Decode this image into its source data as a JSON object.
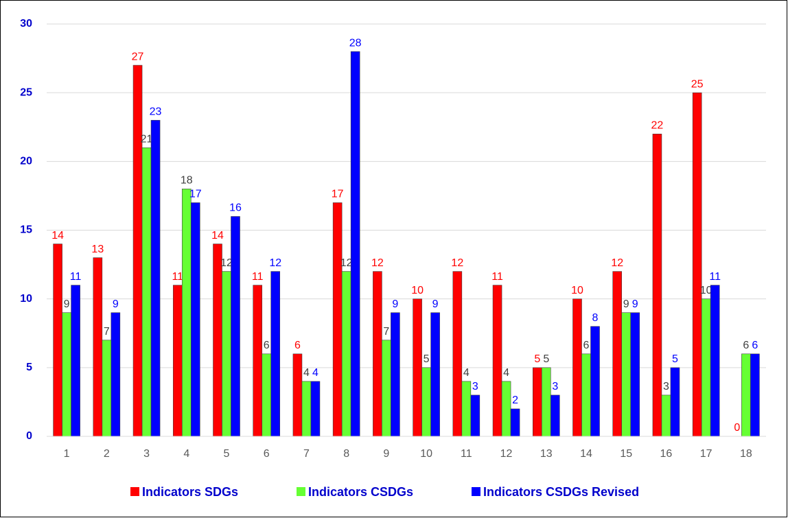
{
  "chart_data": {
    "type": "bar",
    "categories": [
      "1",
      "2",
      "3",
      "4",
      "5",
      "6",
      "7",
      "8",
      "9",
      "10",
      "11",
      "12",
      "13",
      "14",
      "15",
      "16",
      "17",
      "18"
    ],
    "series": [
      {
        "name": "Indicators SDGs",
        "color": "#ff0000",
        "label_color": "#ff0000",
        "values": [
          14,
          13,
          27,
          11,
          14,
          11,
          6,
          17,
          12,
          10,
          12,
          11,
          5,
          10,
          12,
          22,
          25,
          0
        ]
      },
      {
        "name": "Indicators CSDGs",
        "color": "#66ff33",
        "label_color": "#404040",
        "values": [
          9,
          7,
          21,
          18,
          12,
          6,
          4,
          12,
          7,
          5,
          4,
          4,
          5,
          6,
          9,
          3,
          10,
          6
        ]
      },
      {
        "name": "Indicators CSDGs Revised",
        "color": "#0000ff",
        "label_color": "#0000ff",
        "values": [
          11,
          9,
          23,
          17,
          16,
          12,
          4,
          28,
          9,
          9,
          3,
          2,
          3,
          8,
          9,
          5,
          11,
          6
        ]
      }
    ],
    "ylim": [
      0,
      30
    ],
    "yticks": [
      0,
      5,
      10,
      15,
      20,
      25,
      30
    ],
    "grid": true,
    "legend": "bottom"
  }
}
